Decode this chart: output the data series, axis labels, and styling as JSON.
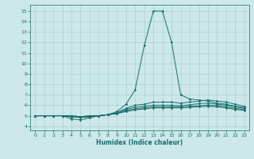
{
  "title": "",
  "xlabel": "Humidex (Indice chaleur)",
  "ylabel": "",
  "bg_color": "#cce8ea",
  "grid_color": "#b0d4d8",
  "line_color": "#1a6e6a",
  "xlim": [
    -0.5,
    23.5
  ],
  "ylim": [
    3.6,
    15.6
  ],
  "xticks": [
    0,
    1,
    2,
    3,
    4,
    5,
    6,
    7,
    8,
    9,
    10,
    11,
    12,
    13,
    14,
    15,
    16,
    17,
    18,
    19,
    20,
    21,
    22,
    23
  ],
  "yticks": [
    4,
    5,
    6,
    7,
    8,
    9,
    10,
    11,
    12,
    13,
    14,
    15
  ],
  "lines": [
    {
      "x": [
        0,
        1,
        2,
        3,
        4,
        5,
        6,
        7,
        8,
        9,
        10,
        11,
        12,
        13,
        14,
        15,
        16,
        17,
        18,
        19,
        20,
        21,
        22,
        23
      ],
      "y": [
        5.0,
        5.0,
        5.0,
        5.0,
        4.7,
        4.6,
        4.8,
        5.0,
        5.1,
        5.4,
        6.1,
        7.5,
        11.7,
        15.0,
        15.0,
        12.0,
        7.0,
        6.6,
        6.5,
        6.4,
        6.2,
        6.1,
        5.9,
        5.8
      ]
    },
    {
      "x": [
        0,
        1,
        2,
        3,
        4,
        5,
        6,
        7,
        8,
        9,
        10,
        11,
        12,
        13,
        14,
        15,
        16,
        17,
        18,
        19,
        20,
        21,
        22,
        23
      ],
      "y": [
        5.0,
        5.0,
        5.0,
        5.0,
        4.9,
        4.85,
        4.9,
        5.0,
        5.1,
        5.3,
        5.7,
        6.0,
        6.1,
        6.3,
        6.3,
        6.3,
        6.2,
        6.3,
        6.4,
        6.5,
        6.4,
        6.3,
        6.1,
        5.9
      ]
    },
    {
      "x": [
        0,
        1,
        2,
        3,
        4,
        5,
        6,
        7,
        8,
        9,
        10,
        11,
        12,
        13,
        14,
        15,
        16,
        17,
        18,
        19,
        20,
        21,
        22,
        23
      ],
      "y": [
        5.0,
        5.0,
        5.0,
        5.0,
        4.9,
        4.85,
        4.9,
        5.0,
        5.1,
        5.25,
        5.6,
        5.8,
        5.9,
        6.0,
        6.0,
        6.0,
        5.95,
        6.05,
        6.15,
        6.2,
        6.1,
        6.0,
        5.85,
        5.7
      ]
    },
    {
      "x": [
        0,
        1,
        2,
        3,
        4,
        5,
        6,
        7,
        8,
        9,
        10,
        11,
        12,
        13,
        14,
        15,
        16,
        17,
        18,
        19,
        20,
        21,
        22,
        23
      ],
      "y": [
        5.0,
        5.0,
        5.0,
        5.0,
        5.0,
        4.9,
        5.0,
        5.0,
        5.1,
        5.2,
        5.5,
        5.65,
        5.75,
        5.85,
        5.85,
        5.85,
        5.85,
        5.9,
        5.95,
        6.0,
        5.95,
        5.85,
        5.7,
        5.6
      ]
    },
    {
      "x": [
        0,
        1,
        2,
        3,
        4,
        5,
        6,
        7,
        8,
        9,
        10,
        11,
        12,
        13,
        14,
        15,
        16,
        17,
        18,
        19,
        20,
        21,
        22,
        23
      ],
      "y": [
        5.0,
        5.0,
        5.0,
        5.0,
        5.0,
        4.9,
        5.0,
        5.0,
        5.1,
        5.2,
        5.4,
        5.55,
        5.65,
        5.75,
        5.75,
        5.75,
        5.75,
        5.8,
        5.85,
        5.9,
        5.85,
        5.75,
        5.6,
        5.5
      ]
    }
  ]
}
